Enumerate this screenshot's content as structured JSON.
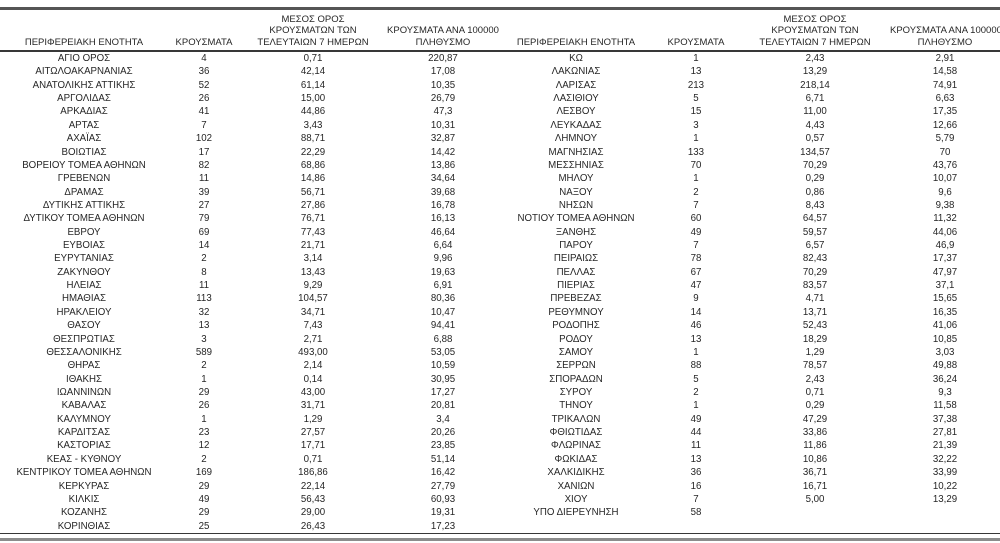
{
  "colors": {
    "background": "#ffffff",
    "text": "#262626",
    "line_dark": "#383838",
    "line_top": "#555555",
    "line_gray": "#8c8c8c"
  },
  "headers": {
    "region": "ΠΕΡΙΦΕΡΕΙΑΚΗ ΕΝΟΤΗΤΑ",
    "cases": "ΚΡΟΥΣΜΑΤΑ",
    "avg7_lines": [
      "ΜΕΣΟΣ ΟΡΟΣ",
      "ΚΡΟΥΣΜΑΤΩΝ ΤΩΝ",
      "ΤΕΛΕΥΤΑΙΩΝ 7 ΗΜΕΡΩΝ"
    ],
    "per100k_lines": [
      "ΚΡΟΥΣΜΑΤΑ ΑΝΑ 100000",
      "ΠΛΗΘΥΣΜΟ"
    ]
  },
  "left_rows": [
    {
      "region": "ΑΓΙΟ ΟΡΟΣ",
      "cases": "4",
      "avg7": "0,71",
      "per100k": "220,87"
    },
    {
      "region": "ΑΙΤΩΛΟΑΚΑΡΝΑΝΙΑΣ",
      "cases": "36",
      "avg7": "42,14",
      "per100k": "17,08"
    },
    {
      "region": "ΑΝΑΤΟΛΙΚΗΣ ΑΤΤΙΚΗΣ",
      "cases": "52",
      "avg7": "61,14",
      "per100k": "10,35"
    },
    {
      "region": "ΑΡΓΟΛΙΔΑΣ",
      "cases": "26",
      "avg7": "15,00",
      "per100k": "26,79"
    },
    {
      "region": "ΑΡΚΑΔΙΑΣ",
      "cases": "41",
      "avg7": "44,86",
      "per100k": "47,3"
    },
    {
      "region": "ΑΡΤΑΣ",
      "cases": "7",
      "avg7": "3,43",
      "per100k": "10,31"
    },
    {
      "region": "ΑΧΑΪΑΣ",
      "cases": "102",
      "avg7": "88,71",
      "per100k": "32,87"
    },
    {
      "region": "ΒΟΙΩΤΙΑΣ",
      "cases": "17",
      "avg7": "22,29",
      "per100k": "14,42"
    },
    {
      "region": "ΒΟΡΕΙΟΥ ΤΟΜΕΑ ΑΘΗΝΩΝ",
      "cases": "82",
      "avg7": "68,86",
      "per100k": "13,86"
    },
    {
      "region": "ΓΡΕΒΕΝΩΝ",
      "cases": "11",
      "avg7": "14,86",
      "per100k": "34,64"
    },
    {
      "region": "ΔΡΑΜΑΣ",
      "cases": "39",
      "avg7": "56,71",
      "per100k": "39,68"
    },
    {
      "region": "ΔΥΤΙΚΗΣ ΑΤΤΙΚΗΣ",
      "cases": "27",
      "avg7": "27,86",
      "per100k": "16,78"
    },
    {
      "region": "ΔΥΤΙΚΟΥ ΤΟΜΕΑ ΑΘΗΝΩΝ",
      "cases": "79",
      "avg7": "76,71",
      "per100k": "16,13"
    },
    {
      "region": "ΕΒΡΟΥ",
      "cases": "69",
      "avg7": "77,43",
      "per100k": "46,64"
    },
    {
      "region": "ΕΥΒΟΙΑΣ",
      "cases": "14",
      "avg7": "21,71",
      "per100k": "6,64"
    },
    {
      "region": "ΕΥΡΥΤΑΝΙΑΣ",
      "cases": "2",
      "avg7": "3,14",
      "per100k": "9,96"
    },
    {
      "region": "ΖΑΚΥΝΘΟΥ",
      "cases": "8",
      "avg7": "13,43",
      "per100k": "19,63"
    },
    {
      "region": "ΗΛΕΙΑΣ",
      "cases": "11",
      "avg7": "9,29",
      "per100k": "6,91"
    },
    {
      "region": "ΗΜΑΘΙΑΣ",
      "cases": "113",
      "avg7": "104,57",
      "per100k": "80,36"
    },
    {
      "region": "ΗΡΑΚΛΕΙΟΥ",
      "cases": "32",
      "avg7": "34,71",
      "per100k": "10,47"
    },
    {
      "region": "ΘΑΣΟΥ",
      "cases": "13",
      "avg7": "7,43",
      "per100k": "94,41"
    },
    {
      "region": "ΘΕΣΠΡΩΤΙΑΣ",
      "cases": "3",
      "avg7": "2,71",
      "per100k": "6,88"
    },
    {
      "region": "ΘΕΣΣΑΛΟΝΙΚΗΣ",
      "cases": "589",
      "avg7": "493,00",
      "per100k": "53,05"
    },
    {
      "region": "ΘΗΡΑΣ",
      "cases": "2",
      "avg7": "2,14",
      "per100k": "10,59"
    },
    {
      "region": "ΙΘΑΚΗΣ",
      "cases": "1",
      "avg7": "0,14",
      "per100k": "30,95"
    },
    {
      "region": "ΙΩΑΝΝΙΝΩΝ",
      "cases": "29",
      "avg7": "43,00",
      "per100k": "17,27"
    },
    {
      "region": "ΚΑΒΑΛΑΣ",
      "cases": "26",
      "avg7": "31,71",
      "per100k": "20,81"
    },
    {
      "region": "ΚΑΛΥΜΝΟΥ",
      "cases": "1",
      "avg7": "1,29",
      "per100k": "3,4"
    },
    {
      "region": "ΚΑΡΔΙΤΣΑΣ",
      "cases": "23",
      "avg7": "27,57",
      "per100k": "20,26"
    },
    {
      "region": "ΚΑΣΤΟΡΙΑΣ",
      "cases": "12",
      "avg7": "17,71",
      "per100k": "23,85"
    },
    {
      "region": "ΚΕΑΣ - ΚΥΘΝΟΥ",
      "cases": "2",
      "avg7": "0,71",
      "per100k": "51,14"
    },
    {
      "region": "ΚΕΝΤΡΙΚΟΥ ΤΟΜΕΑ ΑΘΗΝΩΝ",
      "cases": "169",
      "avg7": "186,86",
      "per100k": "16,42"
    },
    {
      "region": "ΚΕΡΚΥΡΑΣ",
      "cases": "29",
      "avg7": "22,14",
      "per100k": "27,79"
    },
    {
      "region": "ΚΙΛΚΙΣ",
      "cases": "49",
      "avg7": "56,43",
      "per100k": "60,93"
    },
    {
      "region": "ΚΟΖΑΝΗΣ",
      "cases": "29",
      "avg7": "29,00",
      "per100k": "19,31"
    },
    {
      "region": "ΚΟΡΙΝΘΙΑΣ",
      "cases": "25",
      "avg7": "26,43",
      "per100k": "17,23"
    }
  ],
  "right_rows": [
    {
      "region": "ΚΩ",
      "cases": "1",
      "avg7": "2,43",
      "per100k": "2,91"
    },
    {
      "region": "ΛΑΚΩΝΙΑΣ",
      "cases": "13",
      "avg7": "13,29",
      "per100k": "14,58"
    },
    {
      "region": "ΛΑΡΙΣΑΣ",
      "cases": "213",
      "avg7": "218,14",
      "per100k": "74,91"
    },
    {
      "region": "ΛΑΣΙΘΙΟΥ",
      "cases": "5",
      "avg7": "6,71",
      "per100k": "6,63"
    },
    {
      "region": "ΛΕΣΒΟΥ",
      "cases": "15",
      "avg7": "11,00",
      "per100k": "17,35"
    },
    {
      "region": "ΛΕΥΚΑΔΑΣ",
      "cases": "3",
      "avg7": "4,43",
      "per100k": "12,66"
    },
    {
      "region": "ΛΗΜΝΟΥ",
      "cases": "1",
      "avg7": "0,57",
      "per100k": "5,79"
    },
    {
      "region": "ΜΑΓΝΗΣΙΑΣ",
      "cases": "133",
      "avg7": "134,57",
      "per100k": "70"
    },
    {
      "region": "ΜΕΣΣΗΝΙΑΣ",
      "cases": "70",
      "avg7": "70,29",
      "per100k": "43,76"
    },
    {
      "region": "ΜΗΛΟΥ",
      "cases": "1",
      "avg7": "0,29",
      "per100k": "10,07"
    },
    {
      "region": "ΝΑΞΟΥ",
      "cases": "2",
      "avg7": "0,86",
      "per100k": "9,6"
    },
    {
      "region": "ΝΗΣΩΝ",
      "cases": "7",
      "avg7": "8,43",
      "per100k": "9,38"
    },
    {
      "region": "ΝΟΤΙΟΥ ΤΟΜΕΑ ΑΘΗΝΩΝ",
      "cases": "60",
      "avg7": "64,57",
      "per100k": "11,32"
    },
    {
      "region": "ΞΑΝΘΗΣ",
      "cases": "49",
      "avg7": "59,57",
      "per100k": "44,06"
    },
    {
      "region": "ΠΑΡΟΥ",
      "cases": "7",
      "avg7": "6,57",
      "per100k": "46,9"
    },
    {
      "region": "ΠΕΙΡΑΙΩΣ",
      "cases": "78",
      "avg7": "82,43",
      "per100k": "17,37"
    },
    {
      "region": "ΠΕΛΛΑΣ",
      "cases": "67",
      "avg7": "70,29",
      "per100k": "47,97"
    },
    {
      "region": "ΠΙΕΡΙΑΣ",
      "cases": "47",
      "avg7": "83,57",
      "per100k": "37,1"
    },
    {
      "region": "ΠΡΕΒΕΖΑΣ",
      "cases": "9",
      "avg7": "4,71",
      "per100k": "15,65"
    },
    {
      "region": "ΡΕΘΥΜΝΟΥ",
      "cases": "14",
      "avg7": "13,71",
      "per100k": "16,35"
    },
    {
      "region": "ΡΟΔΟΠΗΣ",
      "cases": "46",
      "avg7": "52,43",
      "per100k": "41,06"
    },
    {
      "region": "ΡΟΔΟΥ",
      "cases": "13",
      "avg7": "18,29",
      "per100k": "10,85"
    },
    {
      "region": "ΣΑΜΟΥ",
      "cases": "1",
      "avg7": "1,29",
      "per100k": "3,03"
    },
    {
      "region": "ΣΕΡΡΩΝ",
      "cases": "88",
      "avg7": "78,57",
      "per100k": "49,88"
    },
    {
      "region": "ΣΠΟΡΑΔΩΝ",
      "cases": "5",
      "avg7": "2,43",
      "per100k": "36,24"
    },
    {
      "region": "ΣΥΡΟΥ",
      "cases": "2",
      "avg7": "0,71",
      "per100k": "9,3"
    },
    {
      "region": "ΤΗΝΟΥ",
      "cases": "1",
      "avg7": "0,29",
      "per100k": "11,58"
    },
    {
      "region": "ΤΡΙΚΑΛΩΝ",
      "cases": "49",
      "avg7": "47,29",
      "per100k": "37,38"
    },
    {
      "region": "ΦΘΙΩΤΙΔΑΣ",
      "cases": "44",
      "avg7": "33,86",
      "per100k": "27,81"
    },
    {
      "region": "ΦΛΩΡΙΝΑΣ",
      "cases": "11",
      "avg7": "11,86",
      "per100k": "21,39"
    },
    {
      "region": "ΦΩΚΙΔΑΣ",
      "cases": "13",
      "avg7": "10,86",
      "per100k": "32,22"
    },
    {
      "region": "ΧΑΛΚΙΔΙΚΗΣ",
      "cases": "36",
      "avg7": "36,71",
      "per100k": "33,99"
    },
    {
      "region": "ΧΑΝΙΩΝ",
      "cases": "16",
      "avg7": "16,71",
      "per100k": "10,22"
    },
    {
      "region": "ΧΙΟΥ",
      "cases": "7",
      "avg7": "5,00",
      "per100k": "13,29"
    },
    {
      "region": "ΥΠΟ ΔΙΕΡΕΥΝΗΣΗ",
      "cases": "58",
      "avg7": "",
      "per100k": ""
    }
  ]
}
